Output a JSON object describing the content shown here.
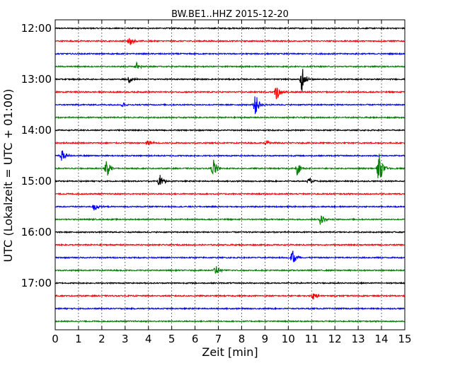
{
  "chart_data": {
    "type": "line",
    "title": "BW.BE1..HHZ 2015-12-20",
    "xlabel": "Zeit  [min]",
    "ylabel": "UTC (Lokalzeit = UTC + 01:00)",
    "xlim": [
      0,
      15
    ],
    "x_ticks": [
      "0",
      "1",
      "2",
      "3",
      "4",
      "5",
      "6",
      "7",
      "8",
      "9",
      "10",
      "11",
      "12",
      "13",
      "14",
      "15"
    ],
    "y_tick_labels": [
      "12:00",
      "13:00",
      "14:00",
      "15:00",
      "16:00",
      "17:00"
    ],
    "grid": true,
    "trace_interval_minutes": 15,
    "color_cycle": [
      "#000000",
      "#ff0000",
      "#0000ff",
      "#008000"
    ],
    "traces": [
      {
        "time": "12:00",
        "events": []
      },
      {
        "time": "12:15",
        "events": [
          {
            "x": 3.2,
            "amp": 0.55
          }
        ]
      },
      {
        "time": "12:30",
        "events": []
      },
      {
        "time": "12:45",
        "events": [
          {
            "x": 3.5,
            "amp": 0.5
          }
        ]
      },
      {
        "time": "13:00",
        "events": [
          {
            "x": 3.2,
            "amp": 0.5
          },
          {
            "x": 10.6,
            "amp": 1.6
          }
        ]
      },
      {
        "time": "13:15",
        "events": [
          {
            "x": 9.5,
            "amp": 1.0
          }
        ]
      },
      {
        "time": "13:30",
        "events": [
          {
            "x": 2.9,
            "amp": 0.3
          },
          {
            "x": 8.6,
            "amp": 1.3
          }
        ]
      },
      {
        "time": "13:45",
        "events": []
      },
      {
        "time": "14:00",
        "events": []
      },
      {
        "time": "14:15",
        "events": [
          {
            "x": 4.0,
            "amp": 0.45
          },
          {
            "x": 9.1,
            "amp": 0.3
          }
        ]
      },
      {
        "time": "14:30",
        "events": [
          {
            "x": 0.3,
            "amp": 0.8
          }
        ]
      },
      {
        "time": "14:45",
        "events": [
          {
            "x": 2.2,
            "amp": 1.2
          },
          {
            "x": 6.8,
            "amp": 1.2
          },
          {
            "x": 10.4,
            "amp": 0.8
          },
          {
            "x": 13.9,
            "amp": 1.8
          }
        ]
      },
      {
        "time": "15:00",
        "events": [
          {
            "x": 4.5,
            "amp": 0.9
          },
          {
            "x": 10.9,
            "amp": 0.4
          }
        ]
      },
      {
        "time": "15:15",
        "events": []
      },
      {
        "time": "15:30",
        "events": [
          {
            "x": 1.7,
            "amp": 0.65
          }
        ]
      },
      {
        "time": "15:45",
        "events": [
          {
            "x": 11.4,
            "amp": 0.7
          }
        ]
      },
      {
        "time": "16:00",
        "events": []
      },
      {
        "time": "16:15",
        "events": []
      },
      {
        "time": "16:30",
        "events": [
          {
            "x": 10.2,
            "amp": 1.2
          }
        ]
      },
      {
        "time": "16:45",
        "events": [
          {
            "x": 6.9,
            "amp": 0.8
          }
        ]
      },
      {
        "time": "17:00",
        "events": []
      },
      {
        "time": "17:15",
        "events": [
          {
            "x": 11.1,
            "amp": 0.55
          }
        ]
      },
      {
        "time": "17:30",
        "events": []
      },
      {
        "time": "17:45",
        "events": []
      }
    ]
  }
}
